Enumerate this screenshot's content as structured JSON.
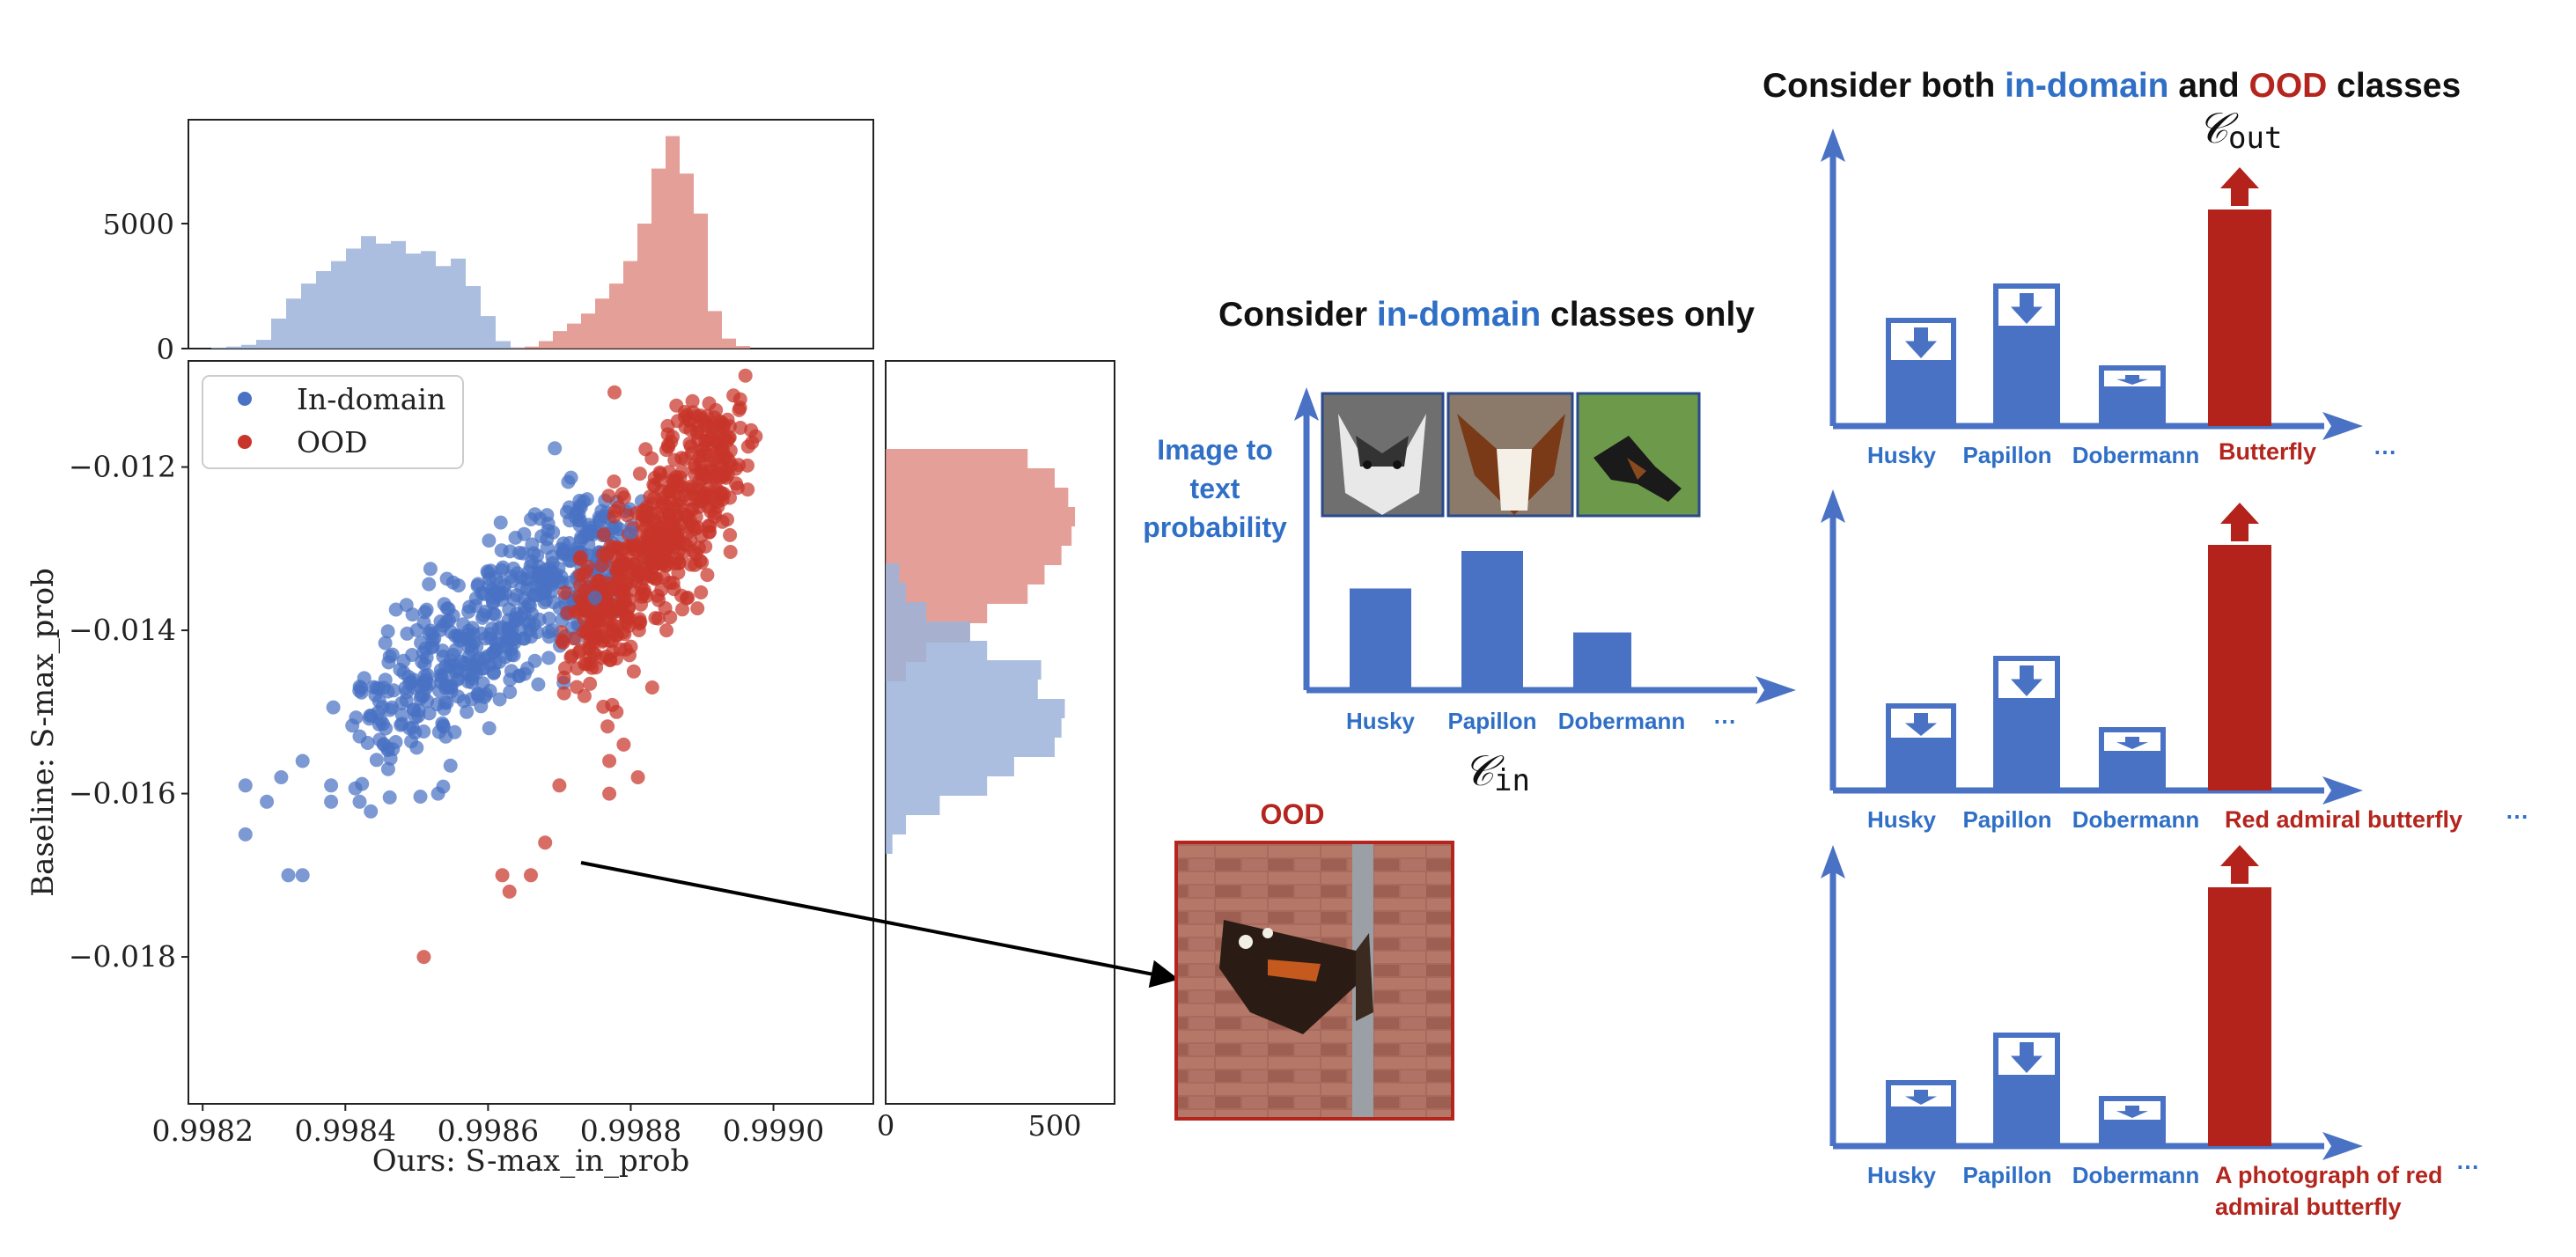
{
  "colors": {
    "in_domain": "#4a72c4",
    "ood": "#c8352a",
    "axis_blue": "#4a72c4",
    "label_blue": "#2f6fc6",
    "label_red": "#b3251d",
    "bar_blue": "#4a72c4",
    "bar_red": "#b3221b",
    "hist_blue": "#9db3d9",
    "hist_red": "#df8e86"
  },
  "chart_data": {
    "type": "scatter",
    "xlabel": "Ours: S-max_in_prob",
    "ylabel": "Baseline: S-max_prob",
    "xlim": [
      0.99818,
      0.99914
    ],
    "ylim": [
      -0.0198,
      -0.0107
    ],
    "x_ticks": [
      "0.9982",
      "0.9984",
      "0.9986",
      "0.9988",
      "0.9990"
    ],
    "y_ticks": [
      "−0.012",
      "−0.014",
      "−0.016",
      "−0.018"
    ],
    "top_hist_ticks": [
      "5000",
      "0"
    ],
    "right_hist_ticks": [
      "0",
      "500"
    ],
    "legend": [
      "In-domain",
      "OOD"
    ],
    "legend_position": "upper-left",
    "series": [
      {
        "name": "In-domain",
        "points": [
          [
            0.99818,
            -0.0172
          ],
          [
            0.99826,
            -0.0159
          ],
          [
            0.99829,
            -0.0161
          ],
          [
            0.99826,
            -0.0165
          ],
          [
            0.99831,
            -0.0158
          ],
          [
            0.99832,
            -0.017
          ],
          [
            0.99834,
            -0.017
          ],
          [
            0.99834,
            -0.0156
          ],
          [
            0.99838,
            -0.0159
          ],
          [
            0.99838,
            -0.0161
          ],
          [
            0.99842,
            -0.0161
          ],
          [
            0.99842,
            -0.0153
          ],
          [
            0.99846,
            -0.0157
          ],
          [
            0.99849,
            -0.0152
          ],
          [
            0.99853,
            -0.016
          ],
          [
            0.99857,
            -0.015
          ],
          [
            0.99861,
            -0.0144
          ],
          [
            0.99865,
            -0.0141
          ],
          [
            0.99869,
            -0.014
          ],
          [
            0.99875,
            -0.0136
          ],
          [
            0.9986,
            -0.0133
          ],
          [
            0.99869,
            -0.0131
          ],
          [
            0.99873,
            -0.0129
          ],
          [
            0.9988,
            -0.0128
          ]
        ],
        "counts_hist_x": [
          40,
          80,
          150,
          350,
          1200,
          2000,
          2600,
          3100,
          3500,
          4000,
          4500,
          4200,
          4300,
          3800,
          3900,
          3300,
          3600,
          2500,
          1300,
          300,
          50
        ],
        "counts_hist_y": [
          40,
          60,
          120,
          250,
          300,
          460,
          450,
          530,
          520,
          500,
          380,
          300,
          160,
          60,
          20
        ]
      },
      {
        "name": "OOD",
        "points": [
          [
            0.99851,
            -0.018
          ],
          [
            0.99862,
            -0.017
          ],
          [
            0.99863,
            -0.0172
          ],
          [
            0.99866,
            -0.017
          ],
          [
            0.99868,
            -0.0166
          ],
          [
            0.9987,
            -0.0159
          ],
          [
            0.99877,
            -0.0156
          ],
          [
            0.99877,
            -0.016
          ],
          [
            0.99879,
            -0.0154
          ],
          [
            0.99881,
            -0.0158
          ],
          [
            0.99878,
            -0.015
          ],
          [
            0.99883,
            -0.0147
          ],
          [
            0.9988,
            -0.0142
          ],
          [
            0.99885,
            -0.014
          ],
          [
            0.99888,
            -0.0136
          ],
          [
            0.99889,
            -0.0132
          ],
          [
            0.99891,
            -0.0128
          ],
          [
            0.99892,
            -0.0123
          ],
          [
            0.99894,
            -0.0118
          ],
          [
            0.99897,
            -0.0117
          ]
        ],
        "counts_hist_x": [
          30,
          80,
          300,
          700,
          1000,
          1400,
          2000,
          2600,
          3500,
          5000,
          7200,
          8500,
          7000,
          5400,
          1500,
          400,
          100
        ],
        "counts_hist_y": [
          420,
          500,
          540,
          560,
          550,
          520,
          470,
          420,
          300,
          250,
          120,
          60
        ]
      }
    ]
  },
  "arrow_target_label": "OOD",
  "middle_panel": {
    "title_prefix": "Consider ",
    "title_highlight": "in-domain",
    "title_suffix": " classes only",
    "ylabel_lines": [
      "Image to",
      "text",
      "probability"
    ],
    "categories": [
      "Husky",
      "Papillon",
      "Dobermann"
    ],
    "values": [
      0.45,
      0.62,
      0.25
    ],
    "ellipsis": "⋯",
    "set_label": "𝒞",
    "set_subscript": "in"
  },
  "right_panel": {
    "title_prefix": "Consider both ",
    "title_highlight_blue": "in-domain",
    "title_mid": " and ",
    "title_highlight_red": "OOD",
    "title_suffix": " classes",
    "set_label": "𝒞",
    "set_subscript": "out",
    "ellipsis": "⋯",
    "rows": [
      {
        "categories": [
          "Husky",
          "Papillon",
          "Dobermann"
        ],
        "ood_label_lines": [
          "Butterfly"
        ],
        "values": [
          0.4,
          0.53,
          0.22
        ],
        "reduced_to": [
          0.25,
          0.38,
          0.15
        ],
        "ood_value": 0.82
      },
      {
        "categories": [
          "Husky",
          "Papillon",
          "Dobermann"
        ],
        "ood_label_lines": [
          "Red admiral butterfly"
        ],
        "values": [
          0.32,
          0.5,
          0.23
        ],
        "reduced_to": [
          0.2,
          0.35,
          0.15
        ],
        "ood_value": 0.93
      },
      {
        "categories": [
          "Husky",
          "Papillon",
          "Dobermann"
        ],
        "ood_label_lines": [
          "A photograph of red",
          "admiral butterfly"
        ],
        "values": [
          0.24,
          0.42,
          0.18
        ],
        "reduced_to": [
          0.15,
          0.27,
          0.1
        ],
        "ood_value": 0.98
      }
    ]
  }
}
